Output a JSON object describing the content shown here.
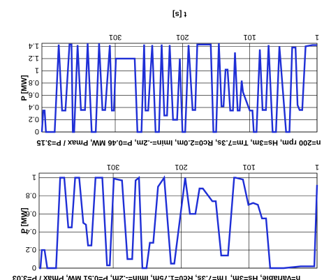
{
  "colors": {
    "series": "#1f2fd6",
    "grid": "#000000",
    "background": "#ffffff"
  },
  "chart_data": [
    {
      "type": "line",
      "orientation": "rotated 180 degrees",
      "title": "t [s]",
      "xlabel": "t [s]",
      "ylabel": "P [MW]",
      "caption": "n=200 rpm, Hs=3m, Tm=7.3s, Rc0=2.0m, Imin=-.2m, P=0.46 MW, Pmax / P=3.15",
      "x_ticks": [
        "1",
        "101",
        "201",
        "301"
      ],
      "y_ticks": [
        "0",
        "0.2",
        "0.4",
        "0.6",
        "0.8",
        "1",
        "1.2",
        "1.4"
      ],
      "xlim": [
        1,
        410
      ],
      "ylim": [
        0,
        1.45
      ],
      "grid": true,
      "series": [
        {
          "x": [
            1,
            8,
            18,
            23,
            27,
            30,
            33,
            38,
            42,
            47,
            57,
            62,
            67,
            73,
            77,
            82,
            86,
            91,
            95,
            97,
            101,
            111,
            113,
            116,
            119,
            123,
            126,
            130,
            134,
            137,
            140,
            143,
            147,
            151,
            155,
            159,
            179,
            182,
            186,
            192,
            197,
            201,
            205,
            209,
            215,
            220,
            224,
            228,
            232,
            236,
            241,
            246,
            252,
            256,
            258,
            262,
            268,
            272,
            300,
            303,
            306,
            309,
            316,
            320,
            325,
            330,
            336,
            342,
            346,
            352,
            357,
            362,
            364,
            366,
            369,
            375,
            380,
            385,
            391,
            395,
            400,
            404,
            406,
            408,
            410
          ],
          "values": [
            1.42,
            1.42,
            1.4,
            0.36,
            0.36,
            0.44,
            1.38,
            1.38,
            0.0,
            0.0,
            1.4,
            0.0,
            0.0,
            1.42,
            0.36,
            0.36,
            1.35,
            0.0,
            0.0,
            0.35,
            0.35,
            0.65,
            0.84,
            0.35,
            0.35,
            1.3,
            0.35,
            0.35,
            1.02,
            1.02,
            0.42,
            0.42,
            1.45,
            0.0,
            0.0,
            1.43,
            1.43,
            0.36,
            0.36,
            1.42,
            0.0,
            0.0,
            1.2,
            0.2,
            0.2,
            1.42,
            0.27,
            0.27,
            1.43,
            0.0,
            0.0,
            1.42,
            0.35,
            0.35,
            1.43,
            0.0,
            0.0,
            1.2,
            1.2,
            0.35,
            0.35,
            1.42,
            0.36,
            0.36,
            1.45,
            0.0,
            0.0,
            1.45,
            0.36,
            0.36,
            1.42,
            0.0,
            0.0,
            1.43,
            1.43,
            0.35,
            0.35,
            1.43,
            0.0,
            0.0,
            0.0,
            0.0,
            0.35,
            0.35,
            0.0
          ]
        }
      ]
    },
    {
      "type": "line",
      "orientation": "rotated 180 degrees",
      "title": "",
      "xlabel": "",
      "ylabel": "P [MW]",
      "caption": "n=variable, Hs=3m, Tm=7.3s, Rc0=1.75m, Imin=-.2m, P=0.51 MW, Pmax / P=3.03",
      "x_ticks": [
        "1",
        "101",
        "201",
        "301"
      ],
      "y_ticks": [
        "0",
        "0.2",
        "0.4",
        "0.6",
        "0.8",
        "1"
      ],
      "xlim": [
        1,
        410
      ],
      "ylim": [
        0,
        1.05
      ],
      "grid": true,
      "series": [
        {
          "x": [
            1,
            5,
            25,
            50,
            70,
            76,
            82,
            88,
            95,
            102,
            110,
            121,
            123,
            132,
            142,
            150,
            155,
            169,
            174,
            180,
            188,
            195,
            211,
            216,
            226,
            235,
            242,
            247,
            252,
            258,
            263,
            268,
            273,
            280,
            288,
            300,
            306,
            310,
            317,
            327,
            333,
            338,
            341,
            345,
            351,
            357,
            362,
            367,
            373,
            379,
            385,
            393,
            398,
            402,
            406,
            408,
            409,
            410
          ],
          "values": [
            0.92,
            0.02,
            0.02,
            0.0,
            0.0,
            0.55,
            0.55,
            0.7,
            0.72,
            0.7,
            0.98,
            1.0,
            1.0,
            0.14,
            0.14,
            0.74,
            0.74,
            0.88,
            0.88,
            0.6,
            0.6,
            1.0,
            0.05,
            0.05,
            1.0,
            0.9,
            0.28,
            0.28,
            0.0,
            0.0,
            1.0,
            0.97,
            0.1,
            0.1,
            0.97,
            0.99,
            0.03,
            0.03,
            1.0,
            1.0,
            0.25,
            0.25,
            0.48,
            0.5,
            1.0,
            1.0,
            0.45,
            0.45,
            1.0,
            1.0,
            0.0,
            0.0,
            0.0,
            0.2,
            0.2,
            0.0,
            0.0,
            0.0
          ]
        }
      ]
    }
  ]
}
